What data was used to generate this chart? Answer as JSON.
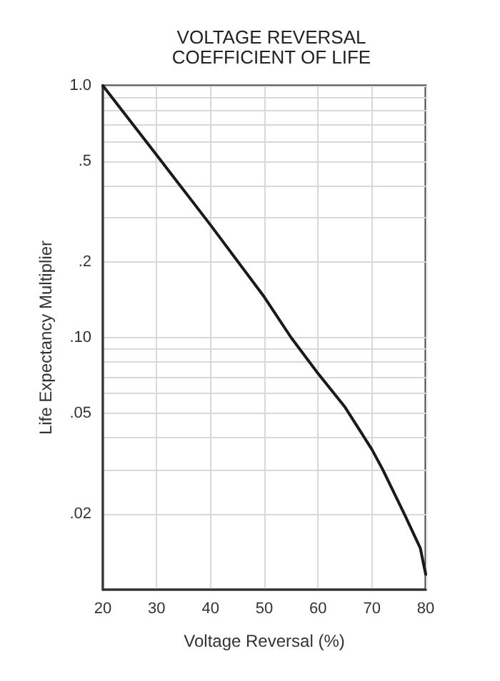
{
  "chart_data": {
    "type": "line",
    "title": "VOLTAGE REVERSAL\nCOEFFICIENT OF LIFE",
    "xlabel": "Voltage Reversal (%)",
    "ylabel": "Life Expectancy Multiplier",
    "series": [
      {
        "color": "#1a1a1a",
        "x": [
          20,
          30,
          40,
          50,
          55,
          60,
          65,
          70,
          72,
          76,
          79,
          80
        ],
        "values": [
          1.0,
          0.53,
          0.28,
          0.145,
          0.1,
          0.072,
          0.053,
          0.036,
          0.03,
          0.02,
          0.0146,
          0.0115
        ]
      }
    ],
    "xlim": [
      20,
      80
    ],
    "xticks": [
      20,
      30,
      40,
      50,
      60,
      70,
      80
    ],
    "ylim": [
      0.01,
      1
    ],
    "log": true,
    "yticks": [
      {
        "value": 1,
        "label": "1.0"
      },
      {
        "value": 0.9,
        "label": null
      },
      {
        "value": 0.8,
        "label": null
      },
      {
        "value": 0.7,
        "label": null
      },
      {
        "value": 0.6,
        "label": null
      },
      {
        "value": 0.5,
        "label": ".5"
      },
      {
        "value": 0.4,
        "label": null
      },
      {
        "value": 0.3,
        "label": null
      },
      {
        "value": 0.2,
        "label": ".2"
      },
      {
        "value": 0.1,
        "label": ".10"
      },
      {
        "value": 0.09,
        "label": null
      },
      {
        "value": 0.08,
        "label": null
      },
      {
        "value": 0.07,
        "label": null
      },
      {
        "value": 0.06,
        "label": null
      },
      {
        "value": 0.05,
        "label": ".05"
      },
      {
        "value": 0.04,
        "label": null
      },
      {
        "value": 0.03,
        "label": null
      },
      {
        "value": 0.02,
        "label": ".02"
      }
    ],
    "grid": true,
    "marker": "none",
    "line_style": "solid"
  }
}
